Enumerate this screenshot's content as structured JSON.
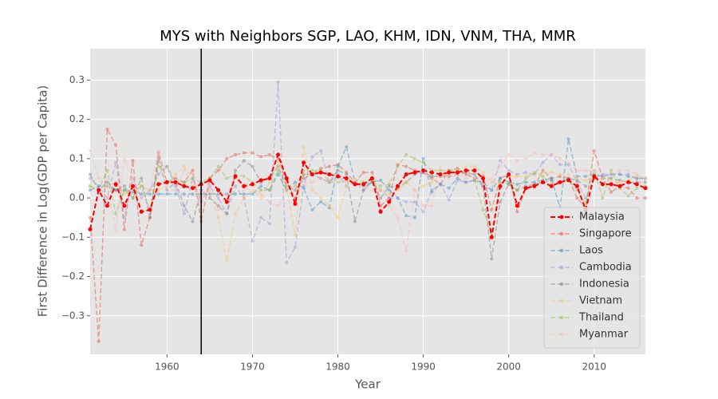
{
  "chart_data": {
    "type": "line",
    "title": "MYS with Neighbors SGP, LAO, KHM, IDN, VNM, THA, MMR",
    "x_label": "Year",
    "y_label": "First Difference in Log(GDP per Capita)",
    "x": [
      1951,
      1952,
      1953,
      1954,
      1955,
      1956,
      1957,
      1958,
      1959,
      1960,
      1961,
      1962,
      1963,
      1964,
      1965,
      1966,
      1967,
      1968,
      1969,
      1970,
      1971,
      1972,
      1973,
      1974,
      1975,
      1976,
      1977,
      1978,
      1979,
      1980,
      1981,
      1982,
      1983,
      1984,
      1985,
      1986,
      1987,
      1988,
      1989,
      1990,
      1991,
      1992,
      1993,
      1994,
      1995,
      1996,
      1997,
      1998,
      1999,
      2000,
      2001,
      2002,
      2003,
      2004,
      2005,
      2006,
      2007,
      2008,
      2009,
      2010,
      2011,
      2012,
      2013,
      2014,
      2015,
      2016
    ],
    "xlim": [
      1951,
      2016
    ],
    "xticks": [
      1960,
      1970,
      1980,
      1990,
      2000,
      2010
    ],
    "ylim": [
      -0.398,
      0.38
    ],
    "yticks": [
      {
        "value": -0.3,
        "label": "−0.3"
      },
      {
        "value": -0.2,
        "label": "−0.2"
      },
      {
        "value": -0.1,
        "label": "−0.1"
      },
      {
        "value": 0,
        "label": "0.0"
      },
      {
        "value": 0.1,
        "label": "0.1"
      },
      {
        "value": 0.2,
        "label": "0.2"
      },
      {
        "value": 0.3,
        "label": "0.3"
      }
    ],
    "reference_x": 1964,
    "grid": true,
    "legend": "lower right",
    "series": [
      {
        "name": "Malaysia",
        "color": "#ff0000",
        "values": [
          -0.08,
          0.02,
          -0.02,
          0.035,
          -0.02,
          0.03,
          -0.035,
          -0.03,
          0.035,
          0.04,
          0.04,
          0.03,
          0.025,
          0.035,
          0.045,
          0.02,
          -0.01,
          0.055,
          0.03,
          0.035,
          0.045,
          0.05,
          0.11,
          0.05,
          -0.015,
          0.09,
          0.06,
          0.065,
          0.06,
          0.055,
          0.05,
          0.035,
          0.035,
          0.05,
          -0.035,
          -0.01,
          0.03,
          0.06,
          0.065,
          0.07,
          0.065,
          0.06,
          0.065,
          0.065,
          0.07,
          0.07,
          0.05,
          -0.1,
          0.03,
          0.06,
          -0.02,
          0.025,
          0.03,
          0.04,
          0.03,
          0.04,
          0.045,
          0.03,
          -0.03,
          0.055,
          0.035,
          0.035,
          0.03,
          0.04,
          0.035,
          0.025
        ]
      },
      {
        "name": "Singapore",
        "color": "#E24A33",
        "values": [
          -0.05,
          -0.365,
          0.175,
          0.135,
          -0.08,
          0.095,
          -0.12,
          -0.05,
          0.115,
          0.04,
          0.05,
          0.04,
          0.07,
          -0.06,
          0.05,
          0.07,
          0.1,
          0.11,
          0.115,
          0.115,
          0.105,
          0.11,
          0.1,
          0.04,
          0.0,
          0.06,
          0.06,
          0.075,
          0.08,
          0.085,
          0.065,
          0.04,
          0.065,
          0.065,
          -0.02,
          0.0,
          0.085,
          0.08,
          0.07,
          0.065,
          0.05,
          0.035,
          0.07,
          0.075,
          0.06,
          0.05,
          0.055,
          -0.03,
          0.05,
          0.06,
          -0.035,
          0.025,
          0.03,
          0.07,
          0.05,
          0.055,
          0.05,
          0.0,
          -0.025,
          0.12,
          0.05,
          0.015,
          0.03,
          0.025,
          0.0,
          0.0
        ]
      },
      {
        "name": "Laos",
        "color": "#348ABD",
        "values": [
          0.02,
          0.03,
          0.03,
          0.02,
          0.02,
          0.015,
          0.01,
          0.01,
          0.01,
          0.01,
          0.01,
          0.01,
          0.01,
          0.01,
          0.01,
          0.01,
          0.01,
          0.01,
          0.01,
          0.01,
          0.03,
          0.02,
          0.06,
          0.02,
          0.04,
          0.025,
          -0.03,
          -0.01,
          -0.025,
          0.08,
          0.13,
          0.04,
          0.03,
          0.04,
          0.045,
          0.02,
          0.0,
          -0.045,
          -0.05,
          0.1,
          0.015,
          0.035,
          0.025,
          0.05,
          0.04,
          0.045,
          0.04,
          0.02,
          0.05,
          0.04,
          0.035,
          0.04,
          0.04,
          0.045,
          0.05,
          -0.025,
          0.15,
          0.055,
          0.055,
          0.06,
          0.055,
          0.06,
          0.06,
          0.055,
          0.05,
          0.05
        ]
      },
      {
        "name": "Cambodia",
        "color": "#988ED5",
        "values": [
          0.05,
          0.03,
          0.0,
          0.09,
          -0.05,
          0.05,
          0.0,
          0.02,
          0.06,
          0.08,
          0.03,
          -0.04,
          0.05,
          -0.01,
          0.03,
          0.0,
          -0.04,
          0.03,
          0.0,
          -0.11,
          -0.05,
          -0.065,
          0.295,
          -0.165,
          -0.125,
          0.03,
          0.105,
          0.12,
          0.04,
          0.06,
          0.03,
          0.04,
          0.02,
          0.04,
          0.02,
          0.0,
          0.0,
          -0.01,
          -0.01,
          -0.035,
          0.02,
          0.035,
          -0.005,
          0.045,
          0.04,
          0.045,
          0.03,
          0.02,
          0.095,
          0.07,
          0.06,
          0.065,
          0.06,
          0.09,
          0.11,
          0.085,
          0.085,
          0.04,
          0.0,
          0.05,
          0.06,
          0.06,
          0.06,
          0.06,
          0.05,
          0.05
        ]
      },
      {
        "name": "Indonesia",
        "color": "#777777",
        "values": [
          0.06,
          0.02,
          0.04,
          0.02,
          0.03,
          0.0,
          0.05,
          -0.05,
          0.1,
          0.02,
          0.04,
          -0.02,
          -0.06,
          0.02,
          0.0,
          -0.02,
          -0.04,
          0.07,
          0.095,
          0.08,
          0.04,
          0.05,
          0.08,
          0.03,
          0.02,
          0.05,
          0.06,
          0.05,
          0.04,
          0.07,
          0.06,
          -0.06,
          0.02,
          0.045,
          0.0,
          0.03,
          0.025,
          0.04,
          0.06,
          0.065,
          0.055,
          0.055,
          0.055,
          0.06,
          0.065,
          0.06,
          0.03,
          -0.155,
          -0.01,
          0.035,
          0.02,
          0.03,
          0.035,
          0.04,
          0.045,
          0.04,
          0.05,
          0.045,
          0.03,
          0.05,
          0.05,
          0.05,
          0.045,
          0.04,
          0.04,
          0.04
        ]
      },
      {
        "name": "Vietnam",
        "color": "#FBC15E",
        "values": [
          0.03,
          0.02,
          0.03,
          0.04,
          0.01,
          0.02,
          0.03,
          0.02,
          0.02,
          0.03,
          0.06,
          0.08,
          0.03,
          0.0,
          0.02,
          -0.05,
          -0.16,
          -0.04,
          0.0,
          0.02,
          0.0,
          0.04,
          0.09,
          0.03,
          -0.095,
          0.13,
          0.02,
          0.0,
          -0.02,
          -0.05,
          0.03,
          0.05,
          0.04,
          0.05,
          0.02,
          0.01,
          0.02,
          0.04,
          0.02,
          0.03,
          0.04,
          0.06,
          0.06,
          0.07,
          0.08,
          0.08,
          0.065,
          0.04,
          0.035,
          0.055,
          0.055,
          0.055,
          0.06,
          0.065,
          0.065,
          0.06,
          0.06,
          0.05,
          0.045,
          0.055,
          0.05,
          0.04,
          0.04,
          0.045,
          0.055,
          0.05
        ]
      },
      {
        "name": "Thailand",
        "color": "#8EBA42",
        "values": [
          0.03,
          0.02,
          0.07,
          -0.04,
          0.02,
          0.0,
          0.03,
          -0.03,
          0.08,
          0.08,
          0.04,
          0.04,
          0.05,
          0.04,
          0.05,
          0.08,
          0.05,
          0.06,
          0.055,
          0.04,
          0.02,
          0.02,
          0.07,
          0.02,
          0.03,
          0.07,
          0.07,
          0.07,
          0.04,
          0.04,
          0.045,
          0.035,
          0.04,
          0.04,
          0.03,
          0.035,
          0.08,
          0.11,
          0.1,
          0.09,
          0.07,
          0.07,
          0.07,
          0.07,
          0.07,
          0.045,
          -0.03,
          -0.09,
          0.04,
          0.035,
          0.02,
          0.05,
          0.065,
          0.055,
          0.035,
          0.04,
          0.045,
          0.02,
          -0.015,
          0.07,
          0.0,
          0.07,
          0.025,
          0.005,
          0.025,
          0.03
        ]
      },
      {
        "name": "Myanmar",
        "color": "#FFB5B8",
        "values": [
          0.12,
          0.05,
          0.03,
          -0.08,
          0.1,
          0.05,
          0.0,
          0.02,
          0.12,
          0.02,
          0.02,
          0.07,
          0.06,
          -0.01,
          0.04,
          -0.03,
          0.01,
          0.05,
          0.02,
          0.03,
          0.01,
          -0.01,
          -0.02,
          0.02,
          0.03,
          0.04,
          0.04,
          0.05,
          0.04,
          0.05,
          0.04,
          0.04,
          0.03,
          0.02,
          0.02,
          -0.02,
          -0.05,
          -0.135,
          0.02,
          -0.02,
          -0.02,
          0.08,
          0.05,
          0.06,
          0.05,
          0.05,
          0.04,
          0.05,
          0.08,
          0.11,
          0.095,
          0.1,
          0.115,
          0.11,
          0.11,
          0.1,
          0.09,
          0.07,
          0.07,
          0.07,
          0.05,
          0.06,
          0.07,
          0.07,
          0.06,
          0.05
        ]
      }
    ]
  }
}
